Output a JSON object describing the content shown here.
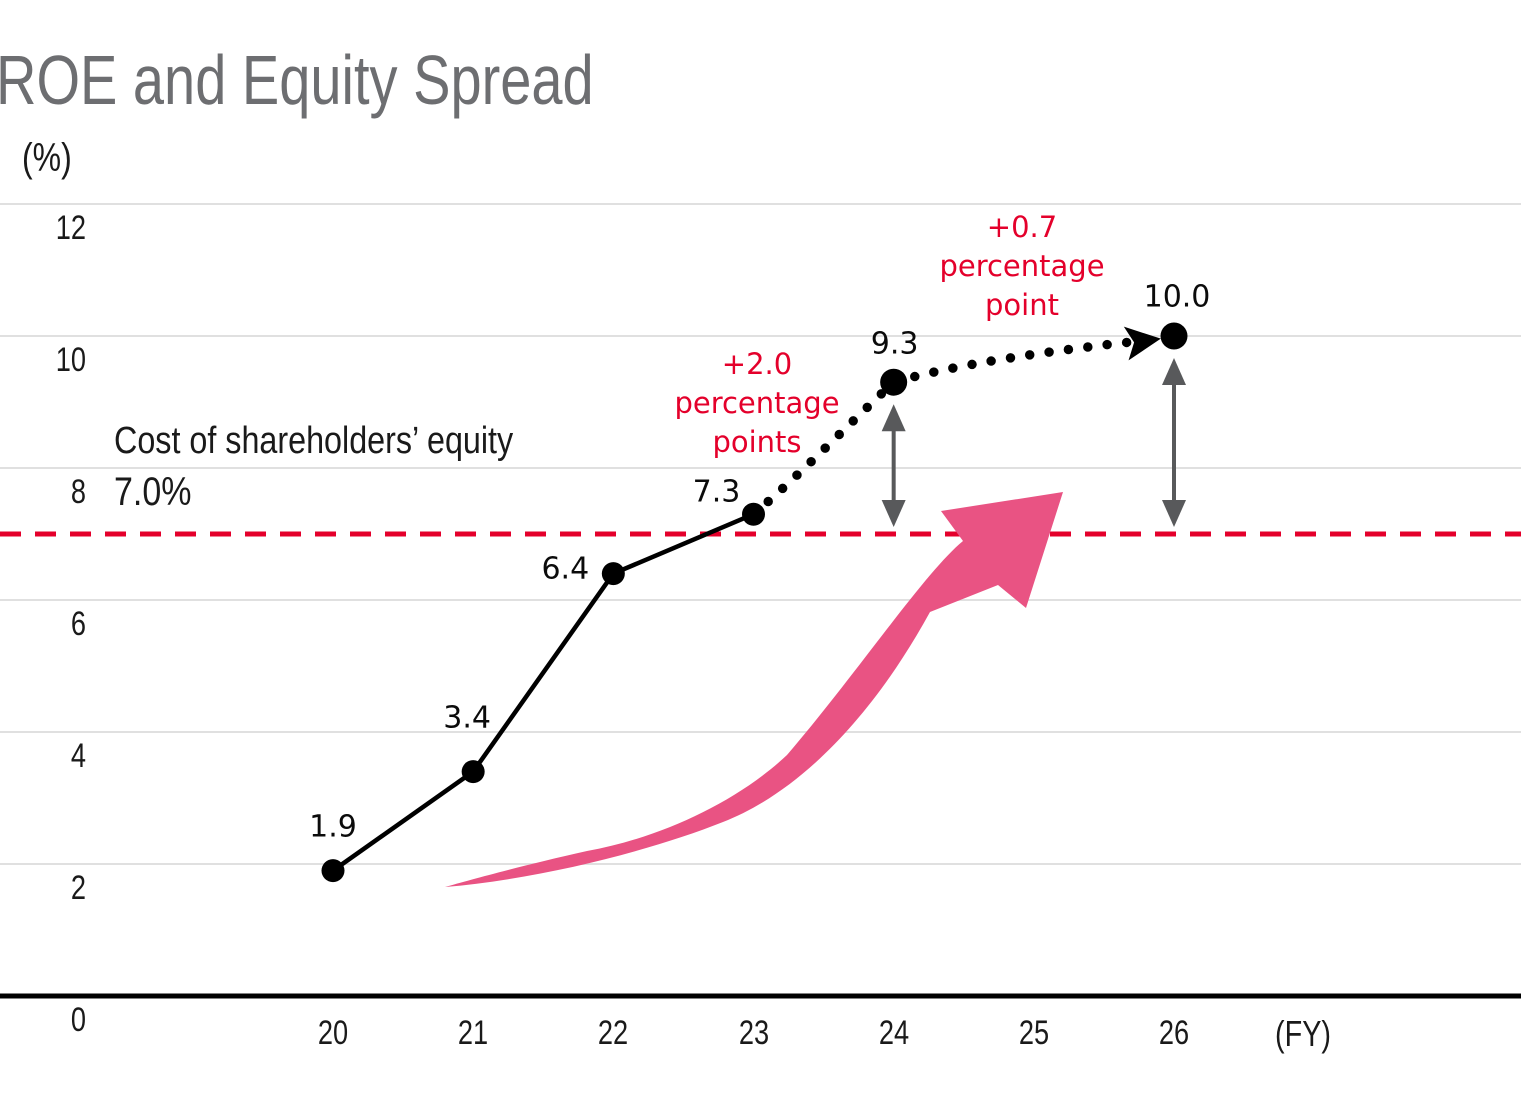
{
  "title": "ROE and Equity Spread",
  "y_axis_unit": "(%)",
  "x_axis_unit": "(FY)",
  "threshold_label": {
    "line1": "Cost of shareholders’ equity",
    "line2": "7.0%"
  },
  "annotations": {
    "fy24": {
      "lines": [
        "+2.0",
        "percentage",
        "points"
      ]
    },
    "fy26": {
      "lines": [
        "+0.7",
        "percentage",
        "point"
      ]
    }
  },
  "colors": {
    "red": "#e4002b",
    "pink": "#e95383",
    "gray_arrow": "#58595b",
    "gridline": "#e0e0e0",
    "axis": "#000000",
    "series": "#000000",
    "title_gray": "#6d6e71",
    "text": "#1a1a1a"
  },
  "chart_data": {
    "type": "line",
    "x": [
      20,
      21,
      22,
      23,
      24,
      26
    ],
    "values": [
      1.9,
      3.4,
      6.4,
      7.3,
      9.3,
      10.0
    ],
    "point_labels": [
      "1.9",
      "3.4",
      "6.4",
      "7.3",
      "9.3",
      "10.0"
    ],
    "solid_until_index": 3,
    "dotted_from_index": 3,
    "x_ticks": [
      "20",
      "21",
      "22",
      "23",
      "24",
      "25",
      "26"
    ],
    "x_tick_values": [
      20,
      21,
      22,
      23,
      24,
      25,
      26
    ],
    "y_ticks": [
      0,
      2,
      4,
      6,
      8,
      10,
      12
    ],
    "ylim": [
      0,
      12.4
    ],
    "xlabel": "(FY)",
    "ylabel": "(%)",
    "grid": true,
    "legend": false,
    "threshold": 7.0,
    "threshold_style": "red-dashed",
    "spread_arrows_at": [
      24,
      26
    ],
    "series_note": "solid line FY20-FY23 actuals, dotted line with arrow FY23-FY26 projection"
  }
}
